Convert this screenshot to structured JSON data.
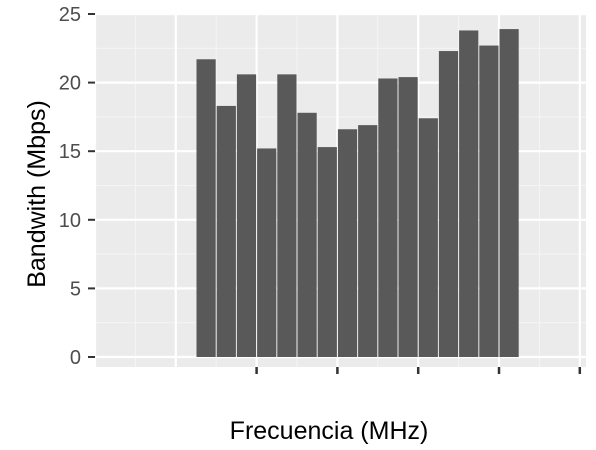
{
  "chart_data": {
    "type": "bar",
    "xlabel": "Frecuencia (MHz)",
    "ylabel": "Bandwith (Mbps)",
    "ylim": [
      0,
      25
    ],
    "yticks": [
      0,
      5,
      10,
      15,
      20,
      25
    ],
    "ytick_labels": [
      "0",
      "5",
      "10",
      "15",
      "20",
      "25"
    ],
    "xlim": [
      0,
      24
    ],
    "xticks": [
      8,
      12,
      16,
      20,
      24
    ],
    "xtick_labels": [
      "",
      "",
      "",
      "",
      ""
    ],
    "x": [
      5.5,
      6.5,
      7.5,
      8.5,
      9.5,
      10.5,
      11.5,
      12.5,
      13.5,
      14.5,
      15.5,
      16.5,
      17.5,
      18.5,
      19.5,
      20.5,
      21.5
    ],
    "values": [
      21.7,
      18.3,
      20.6,
      15.2,
      20.6,
      17.8,
      15.3,
      16.6,
      16.9,
      20.3,
      20.4,
      17.4,
      22.3,
      23.8,
      22.7,
      23.9,
      0
    ],
    "bar_width": 1,
    "grid": true,
    "legend": "none",
    "colors": {
      "panel": "#ebebeb",
      "grid_major": "#ffffff",
      "grid_minor": "#f4f4f4",
      "bar": "#595959",
      "tick": "#333333"
    }
  }
}
